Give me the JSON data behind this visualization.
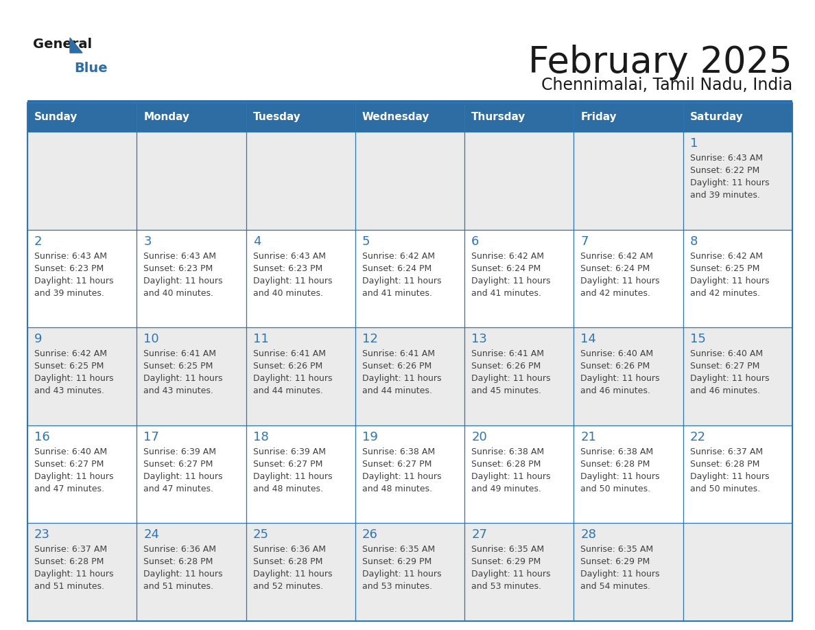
{
  "title": "February 2025",
  "subtitle": "Chennimalai, Tamil Nadu, India",
  "header_bg": "#2E6DA4",
  "header_text_color": "#FFFFFF",
  "day_headers": [
    "Sunday",
    "Monday",
    "Tuesday",
    "Wednesday",
    "Thursday",
    "Friday",
    "Saturday"
  ],
  "cell_bg_light": "#EBEBEB",
  "cell_bg_white": "#FFFFFF",
  "border_color": "#2E75B6",
  "number_color": "#2E75B6",
  "text_color": "#404040",
  "logo_general_color": "#1A1A1A",
  "logo_blue_color": "#2E6DA4",
  "calendar_data": [
    [
      null,
      null,
      null,
      null,
      null,
      null,
      {
        "day": 1,
        "sunrise": "6:43 AM",
        "sunset": "6:22 PM",
        "daylight": "11 hours and 39 minutes."
      }
    ],
    [
      {
        "day": 2,
        "sunrise": "6:43 AM",
        "sunset": "6:23 PM",
        "daylight": "11 hours and 39 minutes."
      },
      {
        "day": 3,
        "sunrise": "6:43 AM",
        "sunset": "6:23 PM",
        "daylight": "11 hours and 40 minutes."
      },
      {
        "day": 4,
        "sunrise": "6:43 AM",
        "sunset": "6:23 PM",
        "daylight": "11 hours and 40 minutes."
      },
      {
        "day": 5,
        "sunrise": "6:42 AM",
        "sunset": "6:24 PM",
        "daylight": "11 hours and 41 minutes."
      },
      {
        "day": 6,
        "sunrise": "6:42 AM",
        "sunset": "6:24 PM",
        "daylight": "11 hours and 41 minutes."
      },
      {
        "day": 7,
        "sunrise": "6:42 AM",
        "sunset": "6:24 PM",
        "daylight": "11 hours and 42 minutes."
      },
      {
        "day": 8,
        "sunrise": "6:42 AM",
        "sunset": "6:25 PM",
        "daylight": "11 hours and 42 minutes."
      }
    ],
    [
      {
        "day": 9,
        "sunrise": "6:42 AM",
        "sunset": "6:25 PM",
        "daylight": "11 hours and 43 minutes."
      },
      {
        "day": 10,
        "sunrise": "6:41 AM",
        "sunset": "6:25 PM",
        "daylight": "11 hours and 43 minutes."
      },
      {
        "day": 11,
        "sunrise": "6:41 AM",
        "sunset": "6:26 PM",
        "daylight": "11 hours and 44 minutes."
      },
      {
        "day": 12,
        "sunrise": "6:41 AM",
        "sunset": "6:26 PM",
        "daylight": "11 hours and 44 minutes."
      },
      {
        "day": 13,
        "sunrise": "6:41 AM",
        "sunset": "6:26 PM",
        "daylight": "11 hours and 45 minutes."
      },
      {
        "day": 14,
        "sunrise": "6:40 AM",
        "sunset": "6:26 PM",
        "daylight": "11 hours and 46 minutes."
      },
      {
        "day": 15,
        "sunrise": "6:40 AM",
        "sunset": "6:27 PM",
        "daylight": "11 hours and 46 minutes."
      }
    ],
    [
      {
        "day": 16,
        "sunrise": "6:40 AM",
        "sunset": "6:27 PM",
        "daylight": "11 hours and 47 minutes."
      },
      {
        "day": 17,
        "sunrise": "6:39 AM",
        "sunset": "6:27 PM",
        "daylight": "11 hours and 47 minutes."
      },
      {
        "day": 18,
        "sunrise": "6:39 AM",
        "sunset": "6:27 PM",
        "daylight": "11 hours and 48 minutes."
      },
      {
        "day": 19,
        "sunrise": "6:38 AM",
        "sunset": "6:27 PM",
        "daylight": "11 hours and 48 minutes."
      },
      {
        "day": 20,
        "sunrise": "6:38 AM",
        "sunset": "6:28 PM",
        "daylight": "11 hours and 49 minutes."
      },
      {
        "day": 21,
        "sunrise": "6:38 AM",
        "sunset": "6:28 PM",
        "daylight": "11 hours and 50 minutes."
      },
      {
        "day": 22,
        "sunrise": "6:37 AM",
        "sunset": "6:28 PM",
        "daylight": "11 hours and 50 minutes."
      }
    ],
    [
      {
        "day": 23,
        "sunrise": "6:37 AM",
        "sunset": "6:28 PM",
        "daylight": "11 hours and 51 minutes."
      },
      {
        "day": 24,
        "sunrise": "6:36 AM",
        "sunset": "6:28 PM",
        "daylight": "11 hours and 51 minutes."
      },
      {
        "day": 25,
        "sunrise": "6:36 AM",
        "sunset": "6:28 PM",
        "daylight": "11 hours and 52 minutes."
      },
      {
        "day": 26,
        "sunrise": "6:35 AM",
        "sunset": "6:29 PM",
        "daylight": "11 hours and 53 minutes."
      },
      {
        "day": 27,
        "sunrise": "6:35 AM",
        "sunset": "6:29 PM",
        "daylight": "11 hours and 53 minutes."
      },
      {
        "day": 28,
        "sunrise": "6:35 AM",
        "sunset": "6:29 PM",
        "daylight": "11 hours and 54 minutes."
      },
      null
    ]
  ]
}
